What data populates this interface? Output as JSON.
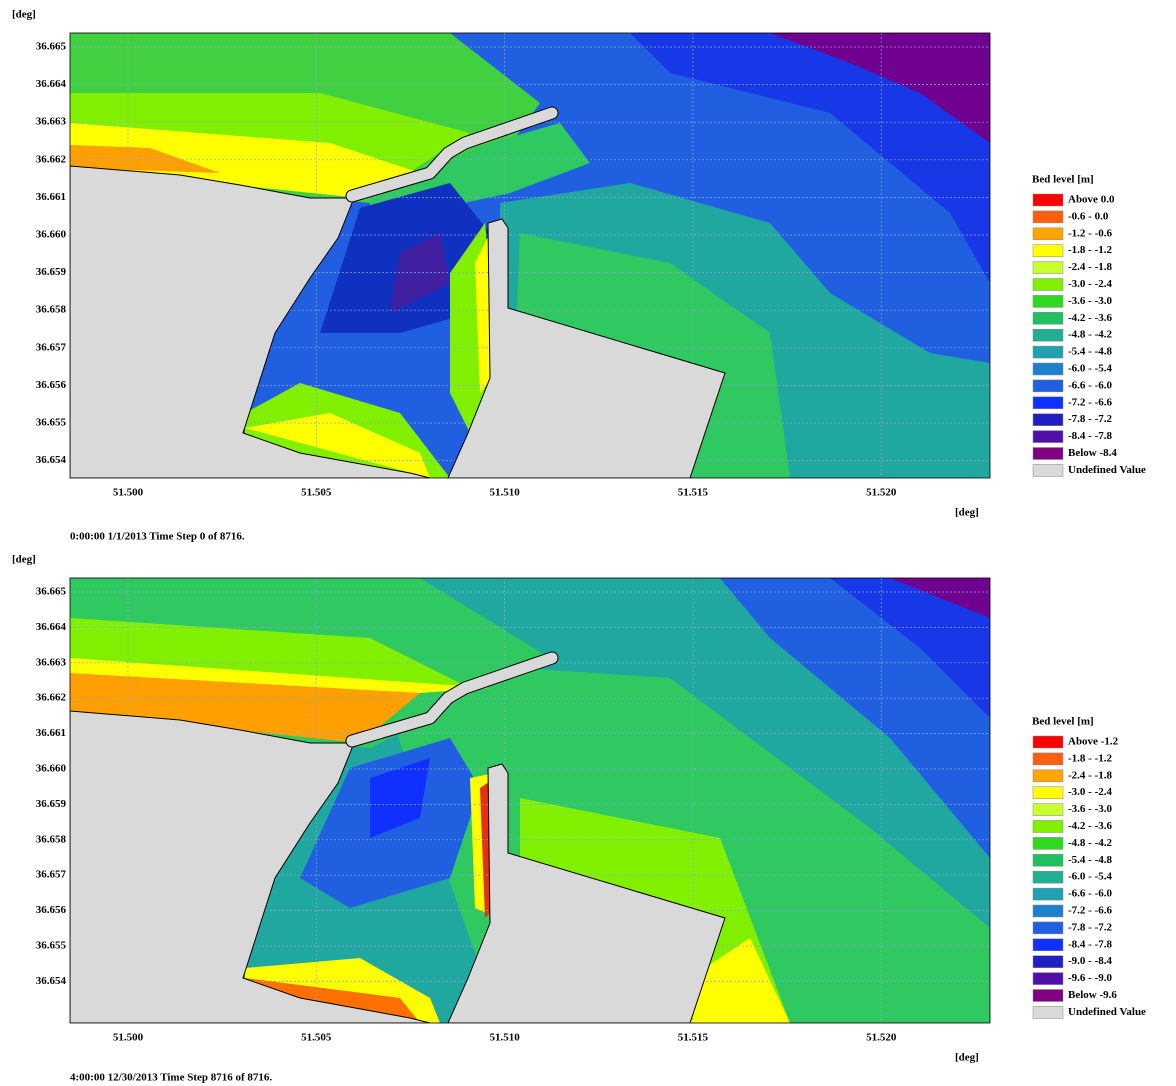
{
  "panels": [
    {
      "y_unit": "[deg]",
      "x_unit": "[deg]",
      "yticks": [
        "36.665",
        "36.664",
        "36.663",
        "36.662",
        "36.661",
        "36.660",
        "36.659",
        "36.658",
        "36.657",
        "36.656",
        "36.655",
        "36.654"
      ],
      "xticks": [
        "51.500",
        "51.505",
        "51.510",
        "51.515",
        "51.520"
      ],
      "legend": {
        "title": "Bed level [m]",
        "items": [
          {
            "label": "Above  0.0",
            "color": "#ff0000"
          },
          {
            "label": "-0.6 -  0.0",
            "color": "#ff6010"
          },
          {
            "label": "-1.2 - -0.6",
            "color": "#ffa500"
          },
          {
            "label": "-1.8 - -1.2",
            "color": "#ffff00"
          },
          {
            "label": "-2.4 - -1.8",
            "color": "#c8ff30"
          },
          {
            "label": "-3.0 - -2.4",
            "color": "#80f000"
          },
          {
            "label": "-3.6 - -3.0",
            "color": "#30d820"
          },
          {
            "label": "-4.2 - -3.6",
            "color": "#20c060"
          },
          {
            "label": "-4.8 - -4.2",
            "color": "#20b090"
          },
          {
            "label": "-5.4 - -4.8",
            "color": "#20a0b0"
          },
          {
            "label": "-6.0 - -5.4",
            "color": "#2080d0"
          },
          {
            "label": "-6.6 - -6.0",
            "color": "#2060e0"
          },
          {
            "label": "-7.2 - -6.6",
            "color": "#1030ff"
          },
          {
            "label": "-7.8 - -7.2",
            "color": "#2020c0"
          },
          {
            "label": "-8.4 - -7.8",
            "color": "#5010a8"
          },
          {
            "label": "Below -8.4",
            "color": "#800080"
          },
          {
            "label": "Undefined Value",
            "color": "#d9d9d9"
          }
        ]
      },
      "caption": "0:00:00 1/1/2013  Time Step 0 of 8716."
    },
    {
      "y_unit": "[deg]",
      "x_unit": "[deg]",
      "yticks": [
        "36.665",
        "36.664",
        "36.663",
        "36.662",
        "36.661",
        "36.660",
        "36.659",
        "36.658",
        "36.657",
        "36.656",
        "36.655",
        "36.654"
      ],
      "xticks": [
        "51.500",
        "51.505",
        "51.510",
        "51.515",
        "51.520"
      ],
      "legend": {
        "title": "Bed level [m]",
        "items": [
          {
            "label": "Above -1.2",
            "color": "#ff0000"
          },
          {
            "label": "-1.8 - -1.2",
            "color": "#ff6010"
          },
          {
            "label": "-2.4 - -1.8",
            "color": "#ffa500"
          },
          {
            "label": "-3.0 - -2.4",
            "color": "#ffff00"
          },
          {
            "label": "-3.6 - -3.0",
            "color": "#c8ff30"
          },
          {
            "label": "-4.2 - -3.6",
            "color": "#80f000"
          },
          {
            "label": "-4.8 - -4.2",
            "color": "#30d820"
          },
          {
            "label": "-5.4 - -4.8",
            "color": "#20c060"
          },
          {
            "label": "-6.0 - -5.4",
            "color": "#20b090"
          },
          {
            "label": "-6.6 - -6.0",
            "color": "#20a0b0"
          },
          {
            "label": "-7.2 - -6.6",
            "color": "#2080d0"
          },
          {
            "label": "-7.8 - -7.2",
            "color": "#2060e0"
          },
          {
            "label": "-8.4 - -7.8",
            "color": "#1030ff"
          },
          {
            "label": "-9.0 - -8.4",
            "color": "#2020c0"
          },
          {
            "label": "-9.6 - -9.0",
            "color": "#5010a8"
          },
          {
            "label": "Below -9.6",
            "color": "#800080"
          },
          {
            "label": "Undefined Value",
            "color": "#d9d9d9"
          }
        ]
      },
      "caption": "4:00:00 12/30/2013  Time Step 8716 of 8716."
    }
  ]
}
